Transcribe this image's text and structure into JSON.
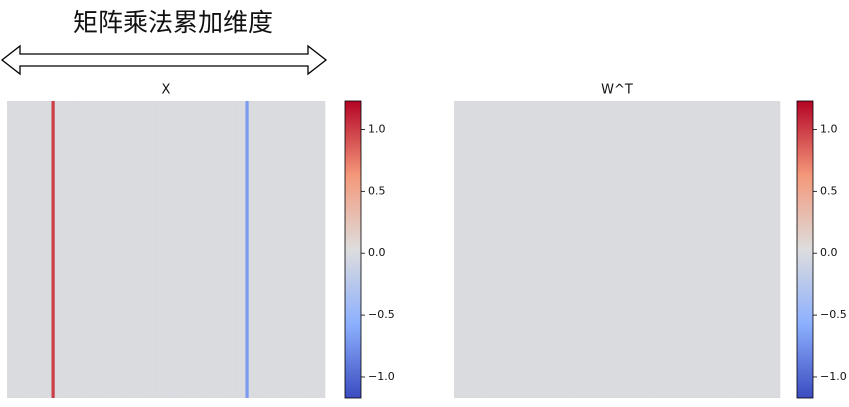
{
  "annotation": "矩阵乘法累加维度",
  "chart_data": [
    {
      "type": "heatmap",
      "title": "X",
      "colormap": "coolwarm",
      "clim": [
        -1.17,
        1.23
      ],
      "yticks": [
        {
          "value": 1.0,
          "label": "1.0"
        },
        {
          "value": 0.5,
          "label": "0.5"
        },
        {
          "value": 0.0,
          "label": "0.0"
        },
        {
          "value": -0.5,
          "label": "−0.5"
        },
        {
          "value": -1.0,
          "label": "−1.0"
        }
      ],
      "values": [
        0,
        0,
        0,
        0,
        0,
        0,
        0,
        0,
        0,
        0,
        0,
        0,
        0,
        0,
        1.0,
        0,
        0,
        0,
        0,
        0,
        0,
        0,
        0,
        0,
        0,
        0,
        0,
        0,
        0,
        0,
        0,
        0,
        0,
        0,
        0,
        0,
        0,
        0,
        0,
        0,
        0,
        0,
        0,
        0,
        0,
        0,
        0,
        0,
        0,
        0,
        0,
        0,
        0,
        0,
        0,
        0,
        0,
        0,
        0,
        0,
        0,
        0,
        0,
        0,
        0,
        0,
        0,
        0,
        0,
        0,
        0,
        0,
        0,
        0,
        0,
        -0.7,
        0,
        0,
        0,
        0,
        0,
        0,
        0,
        0,
        0,
        0,
        0,
        0,
        0,
        0,
        0,
        0,
        0,
        0,
        0,
        0,
        0,
        0,
        0,
        0
      ]
    },
    {
      "type": "heatmap",
      "title": "W^T",
      "colormap": "coolwarm",
      "clim": [
        -1.17,
        1.23
      ],
      "yticks": [
        {
          "value": 1.0,
          "label": "1.0"
        },
        {
          "value": 0.5,
          "label": "0.5"
        },
        {
          "value": 0.0,
          "label": "0.0"
        },
        {
          "value": -0.5,
          "label": "−0.5"
        },
        {
          "value": -1.0,
          "label": "−1.0"
        }
      ],
      "values": [
        0,
        0,
        0,
        0,
        0,
        0,
        0,
        0,
        0,
        0,
        0,
        0,
        0,
        0,
        0,
        0,
        0,
        0,
        0,
        0
      ]
    }
  ]
}
